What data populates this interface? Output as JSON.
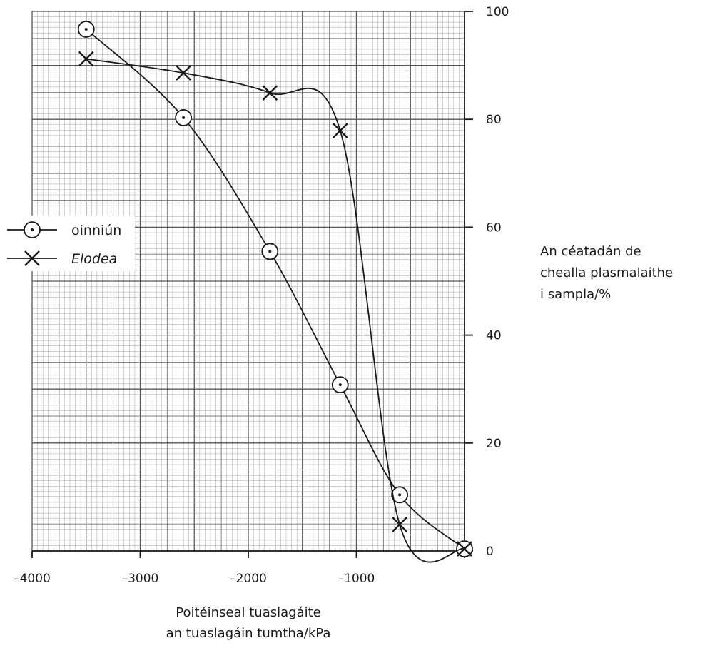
{
  "chart_data": {
    "type": "line",
    "title": "",
    "xlabel": [
      "Poitéinseal tuaslagáite",
      "an tuaslagáin tumtha/kPa"
    ],
    "ylabel": [
      "An céatadán de",
      "chealla plasmalaithe",
      "i sampla/%"
    ],
    "xlim": [
      -4000,
      0
    ],
    "ylim": [
      0,
      100
    ],
    "x_ticks": [
      -4000,
      -3000,
      -2000,
      -1000
    ],
    "x_tick_labels": [
      "–4000",
      "–3000",
      "–2000",
      "–1000"
    ],
    "y_ticks": [
      0,
      20,
      40,
      60,
      80,
      100
    ],
    "y_tick_labels": [
      "0",
      "20",
      "40",
      "60",
      "80",
      "100"
    ],
    "y_axis_side": "right",
    "grid": true,
    "legend_position": "left-middle",
    "series": [
      {
        "name": "oinniún",
        "marker": "circle-dot",
        "points": [
          {
            "x": -3500,
            "y": 96.7
          },
          {
            "x": -2600,
            "y": 80.3
          },
          {
            "x": -1800,
            "y": 55.5
          },
          {
            "x": -1150,
            "y": 30.8
          },
          {
            "x": -600,
            "y": 10.4
          },
          {
            "x": 0,
            "y": 0.4
          }
        ]
      },
      {
        "name": "Elodea",
        "name_style": "italic",
        "marker": "cross",
        "points": [
          {
            "x": -3500,
            "y": 91.2
          },
          {
            "x": -2600,
            "y": 88.6
          },
          {
            "x": -1800,
            "y": 84.9
          },
          {
            "x": -1150,
            "y": 77.9
          },
          {
            "x": -600,
            "y": 4.9
          },
          {
            "x": 0,
            "y": 0.4
          }
        ]
      }
    ]
  }
}
